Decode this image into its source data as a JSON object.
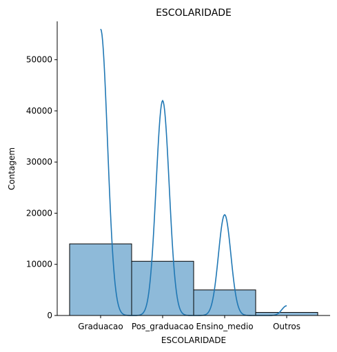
{
  "chart_data": {
    "type": "bar",
    "title": "ESCOLARIDADE",
    "xlabel": "ESCOLARIDADE",
    "ylabel": "Contagem",
    "categories": [
      "Graduacao",
      "Pos_graduacao",
      "Ensino_medio",
      "Outros"
    ],
    "values": [
      14000,
      10600,
      5000,
      600
    ],
    "ylim": [
      0,
      57500
    ],
    "yticks": [
      0,
      10000,
      20000,
      30000,
      40000,
      50000
    ],
    "grid": false,
    "bar_color": "#8ebad9",
    "bar_edge_color": "#000000",
    "kde": {
      "color": "#1f77b4",
      "peaks": [
        56000,
        42000,
        19700,
        1900
      ]
    }
  }
}
